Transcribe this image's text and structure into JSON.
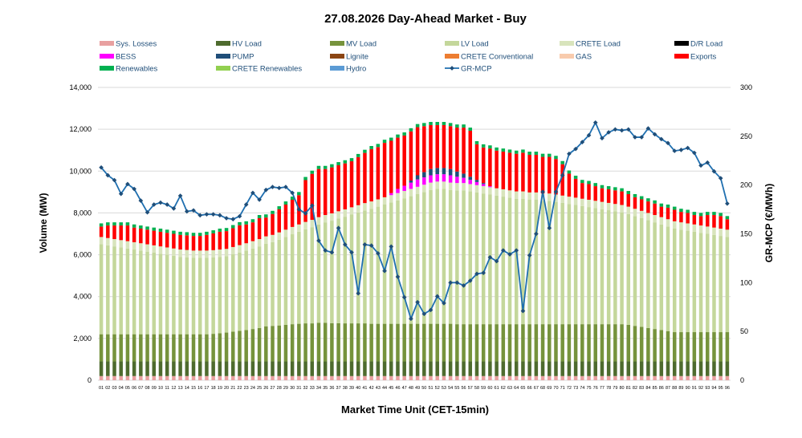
{
  "chart_data": {
    "type": "bar",
    "subtype": "stacked bar with line on secondary axis",
    "title": "27.08.2026  Day-Ahead Market - Buy",
    "xlabel": "Market Time Unit (CET-15min)",
    "ylabel": "Volume (MW)",
    "y2label": "GR-MCP (€/MWh)",
    "ylim": [
      0,
      14000
    ],
    "y2lim": [
      0,
      300
    ],
    "yticks": [
      "0",
      "2,000",
      "4,000",
      "6,000",
      "8,000",
      "10,000",
      "12,000",
      "14,000"
    ],
    "y2ticks": [
      "0",
      "50",
      "100",
      "150",
      "200",
      "250",
      "300"
    ],
    "grid": true,
    "legend_position": "top",
    "categories": [
      "01",
      "02",
      "03",
      "04",
      "05",
      "06",
      "07",
      "08",
      "09",
      "10",
      "11",
      "12",
      "13",
      "14",
      "15",
      "16",
      "17",
      "18",
      "19",
      "20",
      "21",
      "22",
      "23",
      "24",
      "25",
      "26",
      "27",
      "28",
      "29",
      "30",
      "31",
      "32",
      "33",
      "34",
      "35",
      "36",
      "37",
      "38",
      "39",
      "40",
      "41",
      "42",
      "43",
      "44",
      "45",
      "46",
      "47",
      "48",
      "49",
      "50",
      "51",
      "52",
      "53",
      "54",
      "55",
      "56",
      "57",
      "58",
      "59",
      "60",
      "61",
      "62",
      "63",
      "64",
      "65",
      "66",
      "67",
      "68",
      "69",
      "70",
      "71",
      "72",
      "73",
      "74",
      "75",
      "76",
      "77",
      "78",
      "79",
      "80",
      "81",
      "82",
      "83",
      "84",
      "85",
      "86",
      "87",
      "88",
      "89",
      "90",
      "91",
      "92",
      "93",
      "94",
      "95",
      "96"
    ],
    "legend": [
      {
        "name": "Sys. Losses",
        "color": "#e8a0a0",
        "kind": "bar"
      },
      {
        "name": "HV Load",
        "color": "#4e6b2e",
        "kind": "bar"
      },
      {
        "name": "MV Load",
        "color": "#76933c",
        "kind": "bar"
      },
      {
        "name": "LV Load",
        "color": "#c4d79b",
        "kind": "bar"
      },
      {
        "name": "CRETE Load",
        "color": "#d8e4bc",
        "kind": "bar"
      },
      {
        "name": "D/R Load",
        "color": "#000000",
        "kind": "bar"
      },
      {
        "name": "BESS",
        "color": "#ff00ff",
        "kind": "bar"
      },
      {
        "name": "PUMP",
        "color": "#1f4e79",
        "kind": "bar"
      },
      {
        "name": "Lignite",
        "color": "#8b4513",
        "kind": "bar"
      },
      {
        "name": "CRETE Conventional",
        "color": "#ed7d31",
        "kind": "bar"
      },
      {
        "name": "GAS",
        "color": "#f8cbad",
        "kind": "bar"
      },
      {
        "name": "Exports",
        "color": "#ff0000",
        "kind": "bar"
      },
      {
        "name": "Renewables",
        "color": "#00b050",
        "kind": "bar"
      },
      {
        "name": "CRETE Renewables",
        "color": "#92d050",
        "kind": "bar"
      },
      {
        "name": "Hydro",
        "color": "#5b9bd5",
        "kind": "bar"
      },
      {
        "name": "GR-MCP",
        "color": "#1f6fb0",
        "kind": "line"
      }
    ],
    "series": [
      {
        "name": "Sys. Losses",
        "values": [
          200,
          200,
          200,
          200,
          200,
          200,
          200,
          200,
          200,
          200,
          200,
          200,
          200,
          200,
          200,
          200,
          200,
          200,
          200,
          200,
          200,
          200,
          200,
          200,
          200,
          200,
          200,
          200,
          200,
          200,
          200,
          200,
          200,
          200,
          200,
          200,
          200,
          200,
          200,
          200,
          200,
          200,
          200,
          200,
          200,
          200,
          200,
          200,
          200,
          200,
          200,
          200,
          200,
          200,
          200,
          200,
          200,
          200,
          200,
          200,
          200,
          200,
          200,
          200,
          200,
          200,
          200,
          200,
          200,
          200,
          200,
          200,
          200,
          200,
          200,
          200,
          200,
          200,
          200,
          200,
          200,
          200,
          200,
          200,
          200,
          200,
          200,
          200,
          200,
          200,
          200,
          200,
          200,
          200,
          200,
          200
        ]
      },
      {
        "name": "HV Load",
        "values": [
          700,
          700,
          700,
          700,
          700,
          700,
          700,
          700,
          700,
          700,
          700,
          700,
          700,
          700,
          700,
          700,
          700,
          700,
          700,
          700,
          700,
          700,
          700,
          700,
          700,
          700,
          700,
          700,
          700,
          700,
          700,
          700,
          700,
          700,
          700,
          700,
          700,
          700,
          700,
          700,
          700,
          700,
          700,
          700,
          700,
          700,
          700,
          700,
          700,
          700,
          700,
          700,
          700,
          700,
          700,
          700,
          700,
          700,
          700,
          700,
          700,
          700,
          700,
          700,
          700,
          700,
          700,
          700,
          700,
          700,
          700,
          700,
          700,
          700,
          700,
          700,
          700,
          700,
          700,
          700,
          700,
          700,
          700,
          700,
          700,
          700,
          700,
          700,
          700,
          700,
          700,
          700,
          700,
          700,
          700,
          700
        ]
      },
      {
        "name": "MV Load",
        "values": [
          1300,
          1300,
          1300,
          1300,
          1300,
          1300,
          1300,
          1300,
          1300,
          1300,
          1300,
          1300,
          1300,
          1300,
          1300,
          1300,
          1300,
          1320,
          1350,
          1380,
          1420,
          1460,
          1500,
          1550,
          1600,
          1680,
          1700,
          1720,
          1750,
          1780,
          1800,
          1820,
          1820,
          1850,
          1850,
          1830,
          1830,
          1820,
          1820,
          1820,
          1820,
          1800,
          1800,
          1800,
          1800,
          1800,
          1800,
          1800,
          1800,
          1800,
          1800,
          1800,
          1800,
          1800,
          1780,
          1780,
          1780,
          1780,
          1780,
          1780,
          1780,
          1780,
          1780,
          1780,
          1780,
          1780,
          1780,
          1780,
          1780,
          1780,
          1780,
          1780,
          1780,
          1780,
          1780,
          1780,
          1780,
          1780,
          1780,
          1780,
          1750,
          1700,
          1650,
          1600,
          1550,
          1500,
          1450,
          1400,
          1400,
          1400,
          1400,
          1400,
          1400,
          1400,
          1400,
          1400
        ]
      },
      {
        "name": "LV Load",
        "values": [
          4300,
          4250,
          4200,
          4150,
          4100,
          4050,
          4000,
          3950,
          3900,
          3850,
          3800,
          3750,
          3700,
          3680,
          3650,
          3650,
          3650,
          3650,
          3650,
          3650,
          3700,
          3750,
          3800,
          3850,
          3900,
          3950,
          4000,
          4100,
          4200,
          4300,
          4400,
          4500,
          4600,
          4700,
          4800,
          4900,
          5000,
          5100,
          5200,
          5300,
          5400,
          5500,
          5600,
          5700,
          5800,
          5900,
          6000,
          6100,
          6200,
          6300,
          6400,
          6450,
          6450,
          6400,
          6400,
          6400,
          6350,
          6300,
          6250,
          6200,
          6150,
          6100,
          6050,
          6000,
          6000,
          5950,
          5950,
          5900,
          5900,
          5850,
          5800,
          5750,
          5700,
          5650,
          5600,
          5550,
          5500,
          5450,
          5400,
          5350,
          5300,
          5250,
          5200,
          5150,
          5100,
          5050,
          5000,
          4950,
          4900,
          4850,
          4800,
          4750,
          4700,
          4650,
          4600,
          4550
        ]
      },
      {
        "name": "CRETE Load",
        "values": [
          350,
          350,
          350,
          350,
          350,
          350,
          350,
          350,
          350,
          350,
          350,
          350,
          350,
          350,
          350,
          350,
          350,
          350,
          350,
          350,
          350,
          350,
          350,
          350,
          350,
          350,
          350,
          350,
          350,
          350,
          350,
          350,
          350,
          350,
          350,
          350,
          350,
          350,
          350,
          350,
          350,
          350,
          350,
          350,
          350,
          350,
          350,
          350,
          350,
          350,
          350,
          350,
          350,
          350,
          350,
          350,
          350,
          350,
          350,
          350,
          350,
          350,
          350,
          350,
          350,
          350,
          350,
          350,
          350,
          350,
          350,
          350,
          350,
          350,
          350,
          350,
          350,
          350,
          350,
          350,
          350,
          350,
          350,
          350,
          350,
          350,
          350,
          350,
          350,
          350,
          350,
          350,
          350,
          350,
          350,
          350
        ]
      },
      {
        "name": "BESS",
        "values": [
          0,
          0,
          0,
          0,
          0,
          0,
          0,
          0,
          0,
          0,
          0,
          0,
          0,
          0,
          0,
          0,
          0,
          0,
          0,
          0,
          0,
          0,
          0,
          0,
          0,
          0,
          0,
          0,
          0,
          0,
          0,
          0,
          0,
          0,
          0,
          0,
          0,
          0,
          0,
          0,
          0,
          0,
          0,
          0,
          100,
          200,
          250,
          300,
          350,
          350,
          350,
          350,
          350,
          350,
          300,
          250,
          200,
          150,
          100,
          50,
          0,
          0,
          0,
          0,
          0,
          0,
          0,
          0,
          0,
          0,
          0,
          0,
          0,
          0,
          0,
          0,
          0,
          0,
          0,
          0,
          0,
          0,
          0,
          0,
          0,
          0,
          0,
          0,
          0,
          0,
          0,
          0,
          0,
          0,
          0,
          0
        ]
      },
      {
        "name": "PUMP",
        "values": [
          0,
          0,
          0,
          0,
          0,
          0,
          0,
          0,
          0,
          0,
          0,
          0,
          0,
          0,
          0,
          0,
          0,
          0,
          0,
          0,
          0,
          0,
          0,
          0,
          0,
          0,
          0,
          0,
          0,
          0,
          0,
          0,
          0,
          0,
          0,
          0,
          0,
          0,
          0,
          0,
          0,
          0,
          0,
          0,
          0,
          0,
          0,
          100,
          200,
          250,
          300,
          300,
          300,
          300,
          250,
          200,
          150,
          100,
          50,
          0,
          0,
          0,
          0,
          0,
          0,
          0,
          0,
          0,
          0,
          0,
          0,
          0,
          0,
          0,
          0,
          0,
          0,
          0,
          0,
          0,
          0,
          0,
          0,
          0,
          0,
          0,
          0,
          0,
          0,
          0,
          0,
          0,
          0,
          0,
          0,
          0
        ]
      },
      {
        "name": "Exports",
        "values": [
          500,
          600,
          650,
          700,
          750,
          700,
          700,
          700,
          700,
          700,
          700,
          700,
          700,
          700,
          700,
          700,
          750,
          800,
          850,
          850,
          900,
          950,
          900,
          900,
          1000,
          900,
          1000,
          1100,
          1200,
          1300,
          1400,
          2000,
          2200,
          2300,
          2200,
          2200,
          2200,
          2200,
          2200,
          2300,
          2400,
          2500,
          2500,
          2600,
          2500,
          2450,
          2400,
          2350,
          2300,
          2200,
          2100,
          2050,
          2050,
          2050,
          2100,
          2200,
          2200,
          1700,
          1700,
          1800,
          1800,
          1800,
          1800,
          1800,
          1850,
          1800,
          1800,
          1750,
          1750,
          1700,
          1500,
          1100,
          900,
          750,
          750,
          700,
          650,
          650,
          650,
          650,
          600,
          550,
          550,
          550,
          550,
          500,
          550,
          550,
          500,
          500,
          450,
          450,
          550,
          600,
          600,
          500
        ]
      },
      {
        "name": "Renewables",
        "values": [
          150,
          150,
          150,
          150,
          150,
          150,
          150,
          150,
          150,
          150,
          150,
          150,
          150,
          150,
          150,
          150,
          150,
          150,
          150,
          150,
          150,
          150,
          150,
          150,
          150,
          150,
          150,
          150,
          150,
          150,
          150,
          150,
          150,
          150,
          150,
          150,
          150,
          150,
          150,
          150,
          150,
          150,
          150,
          150,
          150,
          150,
          150,
          150,
          150,
          150,
          150,
          150,
          150,
          150,
          150,
          150,
          150,
          150,
          150,
          150,
          150,
          150,
          150,
          150,
          150,
          150,
          150,
          150,
          150,
          150,
          150,
          150,
          150,
          150,
          150,
          150,
          150,
          150,
          150,
          150,
          150,
          150,
          150,
          150,
          150,
          150,
          150,
          150,
          150,
          150,
          150,
          150,
          150,
          150,
          150,
          150
        ]
      },
      {
        "name": "GR-MCP",
        "axis": "secondary",
        "values": [
          218,
          210,
          205,
          191,
          201,
          196,
          184,
          172,
          180,
          182,
          180,
          176,
          189,
          173,
          174,
          169,
          170,
          170,
          169,
          166,
          165,
          168,
          180,
          192,
          185,
          195,
          198,
          197,
          198,
          192,
          175,
          171,
          179,
          143,
          133,
          131,
          156,
          139,
          131,
          89,
          139,
          138,
          130,
          112,
          137,
          106,
          85,
          63,
          80,
          68,
          72,
          86,
          79,
          100,
          100,
          97,
          102,
          109,
          110,
          126,
          122,
          133,
          129,
          133,
          71,
          128,
          150,
          193,
          156,
          193,
          210,
          232,
          237,
          244,
          251,
          264,
          248,
          254,
          257,
          256,
          257,
          249,
          249,
          258,
          252,
          247,
          243,
          235,
          236,
          238,
          233,
          220,
          223,
          214,
          207,
          181
        ]
      }
    ]
  }
}
